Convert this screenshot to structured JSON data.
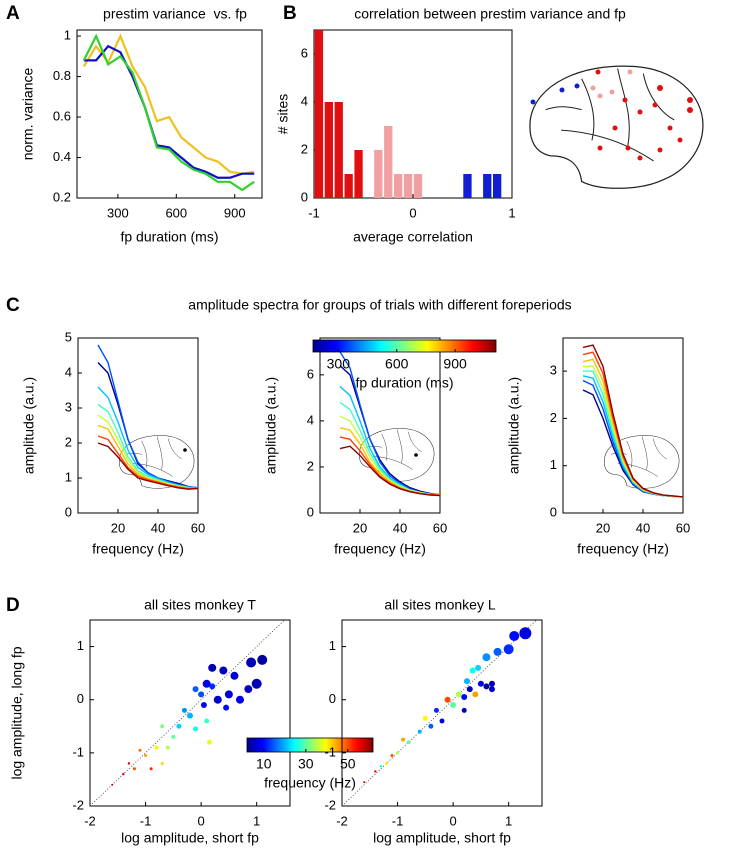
{
  "figure": {
    "labels": [
      "A",
      "B",
      "C",
      "D"
    ],
    "c_title": "amplitude spectra for groups of trials with different foreperiods"
  },
  "chart_data": [
    {
      "type": "line",
      "title": "prestim variance  vs. fp",
      "xlabel": "fp duration (ms)",
      "ylabel": "norm. variance",
      "x": [
        125,
        188,
        250,
        313,
        375,
        438,
        500,
        563,
        625,
        688,
        750,
        813,
        875,
        938,
        1000
      ],
      "xlim": [
        90,
        1040
      ],
      "xticks": [
        300,
        600,
        900
      ],
      "ylim": [
        0.2,
        1.03
      ],
      "yticks": [
        0.2,
        0.4,
        0.6,
        0.8,
        1
      ],
      "series": [
        {
          "color": "#f0c020",
          "values": [
            0.85,
            0.95,
            0.87,
            1.0,
            0.85,
            0.75,
            0.58,
            0.6,
            0.5,
            0.45,
            0.4,
            0.38,
            0.33,
            0.32,
            0.33
          ]
        },
        {
          "color": "#1010c0",
          "values": [
            0.88,
            0.88,
            0.95,
            0.92,
            0.8,
            0.65,
            0.46,
            0.45,
            0.4,
            0.35,
            0.33,
            0.3,
            0.3,
            0.32,
            0.32
          ]
        },
        {
          "color": "#30d030",
          "values": [
            0.88,
            1.0,
            0.86,
            0.9,
            0.82,
            0.65,
            0.45,
            0.44,
            0.38,
            0.34,
            0.32,
            0.28,
            0.28,
            0.24,
            0.28
          ]
        }
      ]
    },
    {
      "type": "histogram",
      "title": "correlation between prestim variance and fp",
      "xlabel": "average correlation",
      "ylabel": "# sites",
      "bins": [
        -1,
        -0.9,
        -0.8,
        -0.7,
        -0.6,
        -0.5,
        -0.4,
        -0.3,
        -0.2,
        -0.1,
        0,
        0.1,
        0.2,
        0.3,
        0.4,
        0.5,
        0.6,
        0.7,
        0.8,
        0.9
      ],
      "values": [
        7,
        4,
        4,
        1,
        2,
        0,
        2,
        3,
        1,
        1,
        1,
        0,
        0,
        0,
        0,
        1,
        0,
        1,
        1
      ],
      "colors": [
        "#e01010",
        "#e01010",
        "#e01010",
        "#e01010",
        "#e01010",
        "#f0a0a0",
        "#f0a0a0",
        "#f0a0a0",
        "#f0a0a0",
        "#f0a0a0",
        "#f0a0a0",
        "#f0a0a0",
        "#f0a0a0",
        "#1020d0",
        "#1020d0",
        "#1020d0",
        "#1020d0",
        "#1020d0",
        "#1020d0"
      ],
      "xlim": [
        -1,
        1
      ],
      "xticks": [
        -1,
        0,
        1
      ],
      "ylim": [
        0,
        7
      ],
      "yticks": [
        0,
        2,
        4,
        6
      ]
    },
    {
      "type": "line",
      "xlabel": "frequency (Hz)",
      "ylabel": "amplitude (a.u.)",
      "x": [
        10,
        15,
        20,
        25,
        30,
        35,
        40,
        45,
        50,
        55,
        60
      ],
      "xlim": [
        0,
        60
      ],
      "xticks": [
        20,
        40,
        60
      ],
      "ylim": [
        0,
        5
      ],
      "yticks": [
        0,
        1,
        2,
        3,
        4,
        5
      ],
      "series": [
        {
          "color": "#00008f",
          "values": [
            4.3,
            4.0,
            3.1,
            2.1,
            1.4,
            1.15,
            1.0,
            0.92,
            0.85,
            0.76,
            0.72
          ]
        },
        {
          "color": "#0050ff",
          "values": [
            4.8,
            4.3,
            3.2,
            2.1,
            1.45,
            1.15,
            1.0,
            0.9,
            0.82,
            0.75,
            0.72
          ]
        },
        {
          "color": "#00c0ff",
          "values": [
            3.6,
            3.3,
            2.6,
            1.8,
            1.3,
            1.1,
            0.98,
            0.88,
            0.8,
            0.74,
            0.72
          ]
        },
        {
          "color": "#40ffc0",
          "values": [
            3.1,
            2.9,
            2.3,
            1.6,
            1.2,
            1.05,
            0.95,
            0.85,
            0.78,
            0.73,
            0.72
          ]
        },
        {
          "color": "#c0ff40",
          "values": [
            2.8,
            2.6,
            2.1,
            1.5,
            1.15,
            1.0,
            0.92,
            0.84,
            0.77,
            0.72,
            0.72
          ]
        },
        {
          "color": "#ffc000",
          "values": [
            2.5,
            2.4,
            1.9,
            1.4,
            1.1,
            0.98,
            0.9,
            0.82,
            0.76,
            0.7,
            0.72
          ]
        },
        {
          "color": "#ff4000",
          "values": [
            2.2,
            2.1,
            1.7,
            1.3,
            1.05,
            0.95,
            0.88,
            0.8,
            0.74,
            0.7,
            0.72
          ]
        },
        {
          "color": "#8f0000",
          "values": [
            2.0,
            1.9,
            1.6,
            1.25,
            1.0,
            0.92,
            0.85,
            0.78,
            0.72,
            0.68,
            0.7
          ]
        }
      ]
    },
    {
      "type": "line",
      "xlabel": "frequency (Hz)",
      "ylabel": "amplitude (a.u.)",
      "x": [
        10,
        15,
        20,
        25,
        30,
        35,
        40,
        45,
        50,
        55,
        60
      ],
      "xlim": [
        0,
        60
      ],
      "xticks": [
        20,
        40,
        60
      ],
      "ylim": [
        0,
        7.6
      ],
      "yticks": [
        0,
        2,
        4,
        6
      ],
      "colorbar": {
        "label": "fp duration (ms)",
        "lim": [
          170,
          1110
        ],
        "ticks": [
          300,
          600,
          900
        ]
      },
      "series": [
        {
          "color": "#00008f",
          "values": [
            6.4,
            6.0,
            4.6,
            3.2,
            2.3,
            1.7,
            1.35,
            1.1,
            0.95,
            0.85,
            0.8
          ]
        },
        {
          "color": "#0050ff",
          "values": [
            7.0,
            6.3,
            4.7,
            3.2,
            2.2,
            1.6,
            1.3,
            1.05,
            0.9,
            0.82,
            0.8
          ]
        },
        {
          "color": "#00c0ff",
          "values": [
            5.5,
            5.1,
            4.0,
            2.8,
            2.0,
            1.5,
            1.25,
            1.0,
            0.9,
            0.82,
            0.8
          ]
        },
        {
          "color": "#40ffc0",
          "values": [
            4.8,
            4.5,
            3.6,
            2.6,
            1.9,
            1.45,
            1.2,
            1.0,
            0.9,
            0.82,
            0.8
          ]
        },
        {
          "color": "#c0ff40",
          "values": [
            4.2,
            4.0,
            3.3,
            2.4,
            1.8,
            1.4,
            1.15,
            0.98,
            0.88,
            0.8,
            0.78
          ]
        },
        {
          "color": "#ffc000",
          "values": [
            3.7,
            3.6,
            3.0,
            2.2,
            1.7,
            1.35,
            1.1,
            0.95,
            0.86,
            0.8,
            0.78
          ]
        },
        {
          "color": "#ff4000",
          "values": [
            3.3,
            3.2,
            2.7,
            2.1,
            1.6,
            1.3,
            1.08,
            0.94,
            0.85,
            0.8,
            0.78
          ]
        },
        {
          "color": "#8f0000",
          "values": [
            2.8,
            2.9,
            2.5,
            2.0,
            1.55,
            1.25,
            1.05,
            0.92,
            0.84,
            0.78,
            0.76
          ]
        }
      ]
    },
    {
      "type": "line",
      "xlabel": "frequency (Hz)",
      "ylabel": "amplitude (a.u.)",
      "x": [
        10,
        15,
        20,
        25,
        30,
        35,
        40,
        45,
        50,
        55,
        60
      ],
      "xlim": [
        0,
        60
      ],
      "xticks": [
        20,
        40,
        60
      ],
      "ylim": [
        0,
        3.7
      ],
      "yticks": [
        0,
        1,
        2,
        3
      ],
      "series": [
        {
          "color": "#00008f",
          "values": [
            2.6,
            2.5,
            2.0,
            1.4,
            0.9,
            0.6,
            0.45,
            0.4,
            0.37,
            0.35,
            0.34
          ]
        },
        {
          "color": "#0050ff",
          "values": [
            2.8,
            2.7,
            2.2,
            1.5,
            0.95,
            0.62,
            0.46,
            0.4,
            0.37,
            0.35,
            0.34
          ]
        },
        {
          "color": "#00c0ff",
          "values": [
            2.9,
            2.85,
            2.35,
            1.6,
            1.0,
            0.64,
            0.47,
            0.41,
            0.37,
            0.35,
            0.34
          ]
        },
        {
          "color": "#40ffc0",
          "values": [
            3.0,
            3.0,
            2.5,
            1.7,
            1.05,
            0.66,
            0.48,
            0.41,
            0.37,
            0.35,
            0.34
          ]
        },
        {
          "color": "#c0ff40",
          "values": [
            3.1,
            3.1,
            2.65,
            1.8,
            1.1,
            0.68,
            0.49,
            0.42,
            0.38,
            0.35,
            0.34
          ]
        },
        {
          "color": "#ffc000",
          "values": [
            3.2,
            3.25,
            2.8,
            1.9,
            1.15,
            0.7,
            0.5,
            0.42,
            0.38,
            0.35,
            0.34
          ]
        },
        {
          "color": "#ff4000",
          "values": [
            3.35,
            3.4,
            2.95,
            2.0,
            1.2,
            0.72,
            0.51,
            0.43,
            0.38,
            0.36,
            0.34
          ]
        },
        {
          "color": "#8f0000",
          "values": [
            3.5,
            3.55,
            3.1,
            2.1,
            1.25,
            0.74,
            0.52,
            0.43,
            0.38,
            0.36,
            0.34
          ]
        }
      ]
    },
    {
      "type": "scatter",
      "title": "all sites monkey T",
      "xlabel": "log amplitude, short fp",
      "ylabel": "log amplitude, long fp",
      "xlim": [
        -2,
        1.6
      ],
      "xticks": [
        -2,
        -1,
        0,
        1
      ],
      "ylim": [
        -2,
        1.5
      ],
      "yticks": [
        -2,
        -1,
        0,
        1
      ],
      "colorbar": {
        "label": "frequency (Hz)",
        "lim": [
          2,
          62
        ],
        "ticks": [
          10,
          30,
          50
        ]
      },
      "x": [
        0.9,
        1.1,
        1.0,
        0.85,
        0.6,
        0.4,
        0.2,
        0.1,
        0.3,
        0.5,
        0.7,
        0.05,
        0.2,
        0.45,
        0.0,
        -0.1,
        -0.2,
        -0.4,
        -0.1,
        0.1,
        -0.3,
        -0.5,
        -0.7,
        -0.6,
        0.15,
        -0.8,
        -1.0,
        -1.1,
        -1.2,
        -0.9,
        -1.4,
        -1.6,
        -0.7,
        -1.3
      ],
      "y": [
        0.7,
        0.75,
        0.3,
        0.2,
        0.45,
        0.55,
        0.6,
        0.3,
        0.0,
        0.1,
        0.0,
        -0.1,
        0.25,
        -0.15,
        0.1,
        0.2,
        -0.3,
        -0.5,
        -0.55,
        -0.4,
        -0.2,
        -0.7,
        -0.5,
        -0.9,
        -0.8,
        -0.9,
        -1.05,
        -0.95,
        -1.3,
        -1.3,
        -1.4,
        -1.6,
        -1.2,
        -1.2
      ],
      "sizes": [
        5,
        5,
        5,
        4,
        4,
        4,
        4,
        4,
        4,
        4,
        4,
        3,
        3,
        3,
        3,
        3,
        3,
        2.5,
        2.5,
        2.5,
        2.5,
        2,
        2,
        2,
        2.5,
        2,
        1.5,
        1.5,
        1.5,
        1.5,
        1.2,
        1,
        1.5,
        1.2
      ],
      "frequency": [
        5,
        4,
        5,
        6,
        7,
        6,
        5,
        8,
        6,
        7,
        8,
        10,
        12,
        10,
        14,
        15,
        20,
        22,
        25,
        28,
        18,
        30,
        32,
        35,
        38,
        40,
        45,
        48,
        50,
        52,
        55,
        58,
        42,
        56
      ]
    },
    {
      "type": "scatter",
      "title": "all sites monkey L",
      "xlabel": "log amplitude, short fp",
      "xlim": [
        -2,
        1.6
      ],
      "xticks": [
        -2,
        -1,
        0,
        1
      ],
      "ylim": [
        -2,
        1.5
      ],
      "yticks": [
        -2,
        -1,
        0,
        1
      ],
      "x": [
        1.3,
        1.1,
        1.0,
        0.8,
        0.6,
        0.45,
        0.35,
        0.7,
        0.6,
        0.7,
        0.5,
        0.3,
        0.2,
        0.1,
        0.0,
        -0.1,
        -0.3,
        -0.2,
        -0.4,
        -0.5,
        -0.6,
        -0.8,
        -0.9,
        -1.0,
        -1.1,
        -1.2,
        -1.4,
        -1.6,
        -1.3,
        0.2,
        0.4,
        0.25
      ],
      "y": [
        1.25,
        1.2,
        0.95,
        0.9,
        0.8,
        0.6,
        0.55,
        0.3,
        0.25,
        0.2,
        0.3,
        0.2,
        0.05,
        0.1,
        -0.1,
        0.0,
        -0.2,
        -0.4,
        -0.5,
        -0.35,
        -0.6,
        -0.8,
        -0.75,
        -1.0,
        -1.05,
        -1.2,
        -1.35,
        -1.55,
        -1.25,
        -0.2,
        0.1,
        0.35
      ],
      "sizes": [
        6,
        5,
        5,
        4,
        4,
        3,
        3,
        3,
        3,
        3,
        3,
        3,
        3,
        3,
        3,
        3,
        2.5,
        2.5,
        2.5,
        2.5,
        2,
        2,
        2,
        1.5,
        1.5,
        1.5,
        1.2,
        1,
        1.2,
        2.5,
        3,
        3
      ],
      "frequency": [
        8,
        10,
        12,
        15,
        18,
        22,
        25,
        5,
        4,
        6,
        8,
        6,
        10,
        35,
        30,
        50,
        12,
        8,
        15,
        40,
        20,
        30,
        45,
        35,
        50,
        40,
        55,
        58,
        25,
        5,
        45,
        20
      ]
    }
  ]
}
